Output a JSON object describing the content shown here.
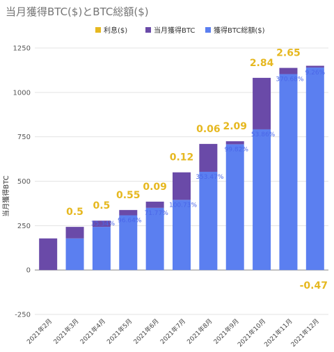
{
  "chart_data": {
    "type": "bar",
    "title": "当月獲得BTC($)とBTC総額($)",
    "ylabel": "当月獲得BTC",
    "ylim": [
      -250,
      1250
    ],
    "yticks": [
      -250,
      0,
      250,
      500,
      750,
      1000,
      1250
    ],
    "grid": true,
    "legend_position": "top",
    "categories": [
      "2021年2月",
      "2021年3月",
      "2021年4月",
      "2021年5月",
      "2021年6月",
      "2021年7月",
      "2021年8月",
      "2021年9月",
      "2021年10月",
      "2021年11月",
      "2021年12月"
    ],
    "series": [
      {
        "name": "利息($)",
        "color": "#e6b820",
        "values": [
          null,
          0.5,
          0.5,
          0.55,
          0.09,
          0.12,
          0.06,
          2.09,
          2.84,
          2.65,
          -0.47
        ],
        "labels": [
          "",
          "0.5",
          "0.5",
          "0.55",
          "0.09",
          "0.12",
          "0.06",
          "2.09",
          "2.84",
          "2.65",
          "-0.47"
        ]
      },
      {
        "name": "当月獲得BTC",
        "color": "#6a4aa8",
        "values": [
          178,
          65,
          35,
          30,
          35,
          155,
          157,
          17,
          290,
          35,
          10
        ]
      },
      {
        "name": "獲得BTC総額($)",
        "color": "#5b7ff0",
        "values": [
          0,
          178,
          243,
          308,
          350,
          395,
          553,
          708,
          792,
          1103,
          1140
        ],
        "labels": [
          "",
          "",
          "35.34%",
          "96.64%",
          "71.77%",
          "100.73%",
          "353.47%",
          "99.82%",
          "53.86%",
          "370.68%",
          "9.26%"
        ]
      }
    ]
  }
}
